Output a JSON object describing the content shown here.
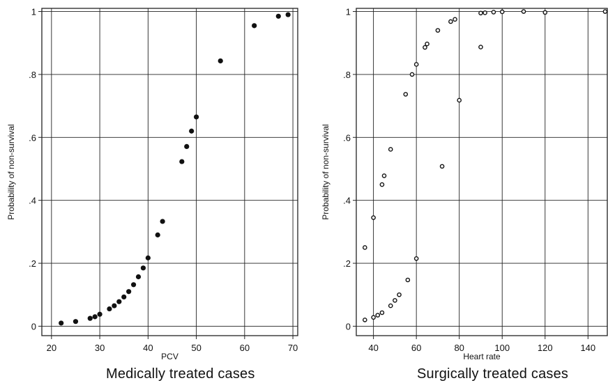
{
  "chart_data": [
    {
      "type": "scatter",
      "caption": "Medically treated cases",
      "xlabel": "PCV",
      "ylabel": "Probability of non-survival",
      "xlim": [
        18,
        71
      ],
      "ylim": [
        -0.03,
        1.01
      ],
      "xticks": [
        20,
        30,
        40,
        50,
        60,
        70
      ],
      "xtick_labels": [
        "20",
        "30",
        "40",
        "50",
        "60",
        "70"
      ],
      "yticks": [
        0,
        0.2,
        0.4,
        0.6,
        0.8,
        1
      ],
      "ytick_labels": [
        "0",
        ".2",
        ".4",
        ".6",
        ".8",
        "1"
      ],
      "grid": true,
      "marker": "filled-circle",
      "x": [
        22,
        25,
        28,
        29,
        30,
        32,
        33,
        34,
        35,
        36,
        37,
        38,
        39,
        40,
        42,
        43,
        47,
        48,
        49,
        50,
        55,
        62,
        67,
        69
      ],
      "y": [
        0.01,
        0.015,
        0.025,
        0.03,
        0.038,
        0.055,
        0.065,
        0.078,
        0.093,
        0.11,
        0.132,
        0.157,
        0.185,
        0.217,
        0.29,
        0.333,
        0.523,
        0.571,
        0.62,
        0.665,
        0.843,
        0.955,
        0.985,
        0.99
      ]
    },
    {
      "type": "scatter",
      "caption": "Surgically treated cases",
      "xlabel": "Heart rate",
      "ylabel": "Probability of non-survival",
      "xlim": [
        32,
        149
      ],
      "ylim": [
        -0.03,
        1.01
      ],
      "xticks": [
        40,
        60,
        80,
        100,
        120,
        140
      ],
      "xtick_labels": [
        "40",
        "60",
        "80",
        "100",
        "120",
        "140"
      ],
      "yticks": [
        0,
        0.2,
        0.4,
        0.6,
        0.8,
        1
      ],
      "ytick_labels": [
        "0",
        ".2",
        ".4",
        ".6",
        ".8",
        "1"
      ],
      "grid": true,
      "marker": "hollow-circle",
      "x": [
        36,
        36,
        40,
        40,
        42,
        44,
        44,
        45,
        48,
        48,
        50,
        52,
        55,
        56,
        58,
        60,
        60,
        64,
        65,
        70,
        72,
        76,
        78,
        80,
        90,
        90,
        92,
        96,
        100,
        110,
        120,
        148
      ],
      "y": [
        0.02,
        0.25,
        0.028,
        0.345,
        0.035,
        0.043,
        0.45,
        0.478,
        0.065,
        0.562,
        0.082,
        0.1,
        0.737,
        0.147,
        0.8,
        0.215,
        0.832,
        0.886,
        0.897,
        0.94,
        0.508,
        0.968,
        0.975,
        0.718,
        0.887,
        0.995,
        0.996,
        0.998,
        0.999,
        1.0,
        0.997,
        1.0
      ]
    }
  ]
}
